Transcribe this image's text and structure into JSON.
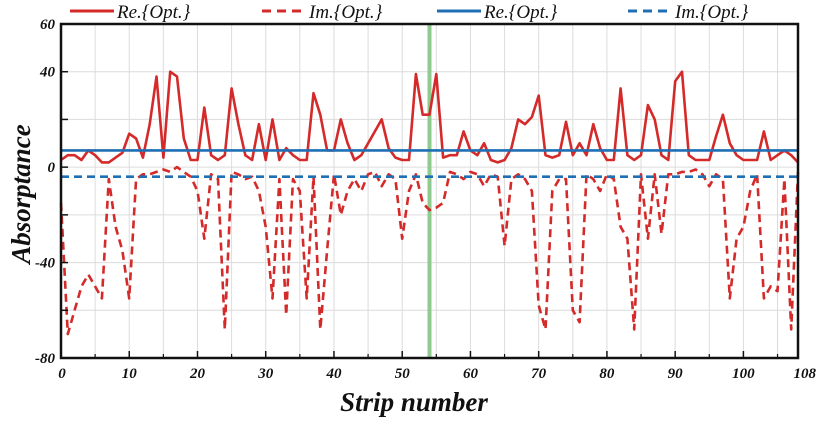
{
  "chart_data": {
    "type": "line",
    "xlabel": "Strip number",
    "ylabel": "Absorptance",
    "xlim": [
      0,
      108
    ],
    "ylim": [
      -80,
      60
    ],
    "x_ticks": [
      0,
      10,
      20,
      30,
      40,
      50,
      60,
      70,
      80,
      90,
      100,
      108
    ],
    "y_ticks": [
      60,
      40,
      0,
      -40,
      -80
    ],
    "grid": true,
    "vertical_marker": {
      "x": 54,
      "color": "#8fca8f"
    },
    "legend_position": "top",
    "series": [
      {
        "name": "Re.{Opt.}",
        "color": "#d42a2a",
        "dash": "solid",
        "x": [
          0,
          1,
          2,
          3,
          4,
          5,
          6,
          7,
          8,
          9,
          10,
          11,
          12,
          13,
          14,
          15,
          16,
          17,
          18,
          19,
          20,
          21,
          22,
          23,
          24,
          25,
          26,
          27,
          28,
          29,
          30,
          31,
          32,
          33,
          34,
          35,
          36,
          37,
          38,
          39,
          40,
          41,
          42,
          43,
          44,
          45,
          46,
          47,
          48,
          49,
          50,
          51,
          52,
          53,
          54,
          55,
          56,
          57,
          58,
          59,
          60,
          61,
          62,
          63,
          64,
          65,
          66,
          67,
          68,
          69,
          70,
          71,
          72,
          73,
          74,
          75,
          76,
          77,
          78,
          79,
          80,
          81,
          82,
          83,
          84,
          85,
          86,
          87,
          88,
          89,
          90,
          91,
          92,
          93,
          94,
          95,
          96,
          97,
          98,
          99,
          100,
          101,
          102,
          103,
          104,
          105,
          106,
          107,
          108
        ],
        "values": [
          3,
          5,
          5,
          3,
          7,
          5,
          2,
          2,
          4,
          6,
          14,
          12,
          4,
          18,
          38,
          4,
          40,
          38,
          12,
          3,
          3,
          25,
          5,
          3,
          5,
          33,
          18,
          5,
          3,
          18,
          3,
          20,
          3,
          8,
          5,
          3,
          3,
          31,
          22,
          7,
          7,
          20,
          10,
          3,
          5,
          10,
          15,
          20,
          8,
          4,
          3,
          3,
          39,
          22,
          22,
          39,
          4,
          5,
          5,
          15,
          7,
          5,
          10,
          3,
          2,
          3,
          8,
          20,
          18,
          21,
          30,
          5,
          4,
          5,
          19,
          5,
          10,
          5,
          18,
          8,
          3,
          3,
          33,
          5,
          3,
          5,
          26,
          20,
          5,
          3,
          36,
          40,
          5,
          3,
          3,
          3,
          13,
          22,
          10,
          5,
          3,
          3,
          3,
          15,
          3,
          5,
          7,
          5,
          2
        ]
      },
      {
        "name": "Im.{Opt.}",
        "color": "#d42a2a",
        "dash": "dashed",
        "x": [
          0,
          1,
          2,
          3,
          4,
          5,
          6,
          7,
          8,
          9,
          10,
          11,
          12,
          13,
          14,
          15,
          16,
          17,
          18,
          19,
          20,
          21,
          22,
          23,
          24,
          25,
          26,
          27,
          28,
          29,
          30,
          31,
          32,
          33,
          34,
          35,
          36,
          37,
          38,
          39,
          40,
          41,
          42,
          43,
          44,
          45,
          46,
          47,
          48,
          49,
          50,
          51,
          52,
          53,
          54,
          55,
          56,
          57,
          58,
          59,
          60,
          61,
          62,
          63,
          64,
          65,
          66,
          67,
          68,
          69,
          70,
          71,
          72,
          73,
          74,
          75,
          76,
          77,
          78,
          79,
          80,
          81,
          82,
          83,
          84,
          85,
          86,
          87,
          88,
          89,
          90,
          91,
          92,
          93,
          94,
          95,
          96,
          97,
          98,
          99,
          100,
          101,
          102,
          103,
          104,
          105,
          106,
          107,
          108
        ],
        "values": [
          -15,
          -70,
          -60,
          -50,
          -45,
          -50,
          -55,
          -5,
          -25,
          -35,
          -55,
          -5,
          -3,
          -3,
          -2,
          -1,
          -2,
          0,
          -2,
          -4,
          -10,
          -30,
          -3,
          -5,
          -68,
          -2,
          -3,
          -5,
          -4,
          -10,
          -25,
          -55,
          -5,
          -62,
          -5,
          -10,
          -55,
          -4,
          -68,
          -35,
          -3,
          -20,
          -10,
          -5,
          -10,
          -3,
          -2,
          -8,
          -3,
          -5,
          -30,
          -10,
          -3,
          -15,
          -18,
          -17,
          -15,
          -2,
          -3,
          -5,
          -2,
          -3,
          -8,
          -3,
          -4,
          -33,
          -5,
          -3,
          -5,
          -10,
          -58,
          -68,
          -10,
          -5,
          -5,
          -60,
          -65,
          -3,
          -5,
          -10,
          -3,
          -5,
          -25,
          -30,
          -68,
          -3,
          -30,
          -3,
          -28,
          -3,
          -3,
          -2,
          -2,
          -1,
          -3,
          -8,
          -3,
          -5,
          -55,
          -30,
          -25,
          -10,
          -3,
          -55,
          -50,
          -52,
          -5,
          -68,
          -2
        ]
      },
      {
        "name": "Re.{Opt.}",
        "color": "#1f6fb5",
        "dash": "solid",
        "x": [
          0,
          108
        ],
        "values": [
          7,
          7
        ]
      },
      {
        "name": "Im.{Opt.}",
        "color": "#1f6fb5",
        "dash": "dashed",
        "x": [
          0,
          108
        ],
        "values": [
          -4,
          -4
        ]
      }
    ]
  }
}
